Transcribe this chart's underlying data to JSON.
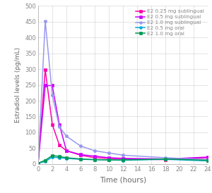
{
  "time": [
    0,
    1,
    2,
    3,
    4,
    6,
    8,
    10,
    12,
    18,
    24
  ],
  "series": [
    {
      "label": "E2 0.25 mg sublingual",
      "color": "#ff00aa",
      "values": [
        3,
        298,
        125,
        60,
        42,
        28,
        20,
        18,
        16,
        14,
        20
      ],
      "marker": "s",
      "markersize": 3
    },
    {
      "label": "E2 0.5 mg sublingual",
      "color": "#cc00ff",
      "values": [
        3,
        248,
        248,
        125,
        42,
        30,
        25,
        20,
        18,
        16,
        22
      ],
      "marker": "s",
      "markersize": 3
    },
    {
      "label": "E2 1.0 mg sublingual",
      "color": "#9999ee",
      "values": [
        3,
        452,
        218,
        118,
        88,
        57,
        42,
        35,
        28,
        20,
        14
      ],
      "marker": "o",
      "markersize": 3
    },
    {
      "label": "E2 0.5 mg oral",
      "color": "#00aadd",
      "values": [
        3,
        8,
        22,
        20,
        18,
        15,
        14,
        13,
        12,
        15,
        10
      ],
      "marker": "o",
      "markersize": 3
    },
    {
      "label": "E2 1.0 mg oral",
      "color": "#009955",
      "values": [
        3,
        12,
        27,
        24,
        20,
        16,
        14,
        13,
        13,
        16,
        12
      ],
      "marker": "s",
      "markersize": 3
    }
  ],
  "xlabel": "Time (hours)",
  "ylabel": "Estradiol levels (pg/mL)",
  "ylim": [
    0,
    500
  ],
  "yticks": [
    0,
    50,
    100,
    150,
    200,
    250,
    300,
    350,
    400,
    450,
    500
  ],
  "xticks": [
    0,
    2,
    4,
    6,
    8,
    10,
    12,
    14,
    16,
    18,
    20,
    22,
    24
  ],
  "background_color": "#ffffff",
  "grid_color": "#d0d0d0",
  "figsize": [
    3.0,
    2.74
  ],
  "dpi": 100
}
